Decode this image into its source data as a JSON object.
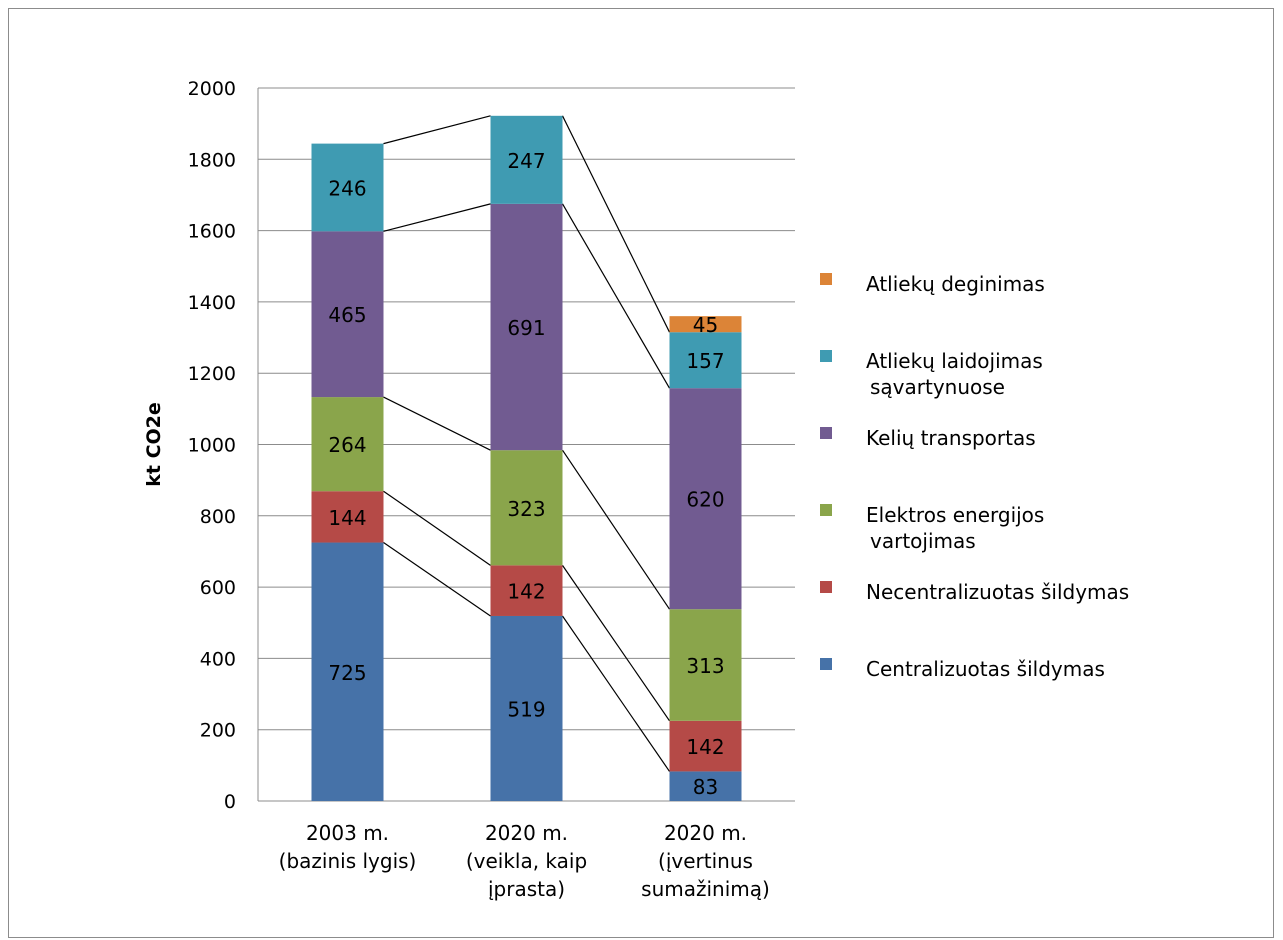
{
  "chart_data": {
    "type": "bar",
    "stacked": true,
    "ylabel": "kt CO2e",
    "ylim": [
      0,
      2000
    ],
    "yticks": [
      0,
      200,
      400,
      600,
      800,
      1000,
      1200,
      1400,
      1600,
      1800,
      2000
    ],
    "grid": true,
    "legend_position": "right",
    "categories": [
      [
        "2003 m.",
        "(bazinis lygis)"
      ],
      [
        "2020 m.",
        "(veikla, kaip",
        "įprasta)"
      ],
      [
        "2020 m.",
        "(įvertinus",
        "sumažinimą)"
      ]
    ],
    "series": [
      {
        "name": "Centralizuotas šildymas",
        "color": "#4672a8",
        "values": [
          725,
          519,
          83
        ]
      },
      {
        "name": "Necentralizuotas šildymas",
        "color": "#b54a47",
        "values": [
          144,
          142,
          142
        ]
      },
      {
        "name": "Elektros energijos vartojimas",
        "legend_lines": [
          "Elektros energijos",
          "vartojimas"
        ],
        "color": "#8aa54b",
        "values": [
          264,
          323,
          313
        ]
      },
      {
        "name": "Kelių transportas",
        "color": "#715b91",
        "values": [
          465,
          691,
          620
        ]
      },
      {
        "name": "Atliekų laidojimas sąvartynuose",
        "legend_lines": [
          "Atliekų laidojimas",
          "sąvartynuose"
        ],
        "color": "#3f9bb2",
        "values": [
          246,
          247,
          157
        ]
      },
      {
        "name": "Atliekų deginimas",
        "color": "#dc8437",
        "values": [
          null,
          null,
          45
        ]
      }
    ],
    "legend_order": [
      "Atliekų deginimas",
      "Atliekų laidojimas sąvartynuose",
      "Kelių transportas",
      "Elektros energijos vartojimas",
      "Necentralizuotas šildymas",
      "Centralizuotas šildymas"
    ],
    "series_lines": true
  }
}
